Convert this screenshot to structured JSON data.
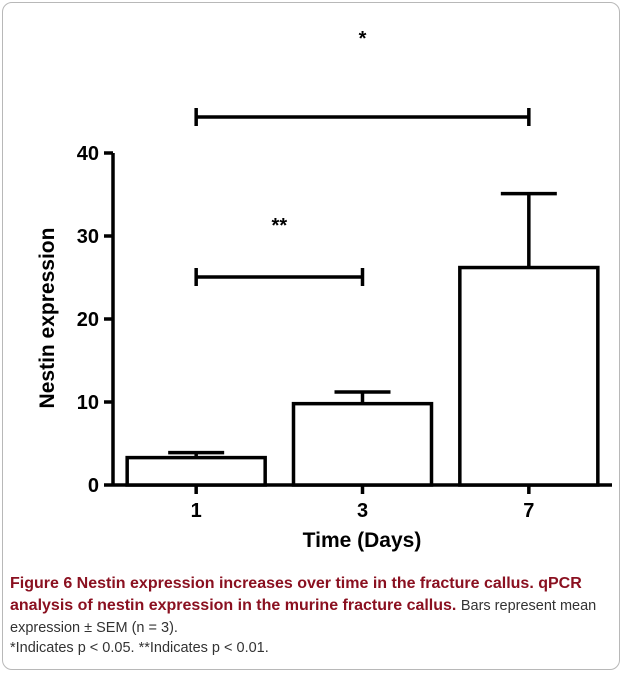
{
  "chart_data": {
    "type": "bar",
    "categories": [
      "1",
      "3",
      "7"
    ],
    "values": [
      3.3,
      9.8,
      26.2
    ],
    "errors": [
      0.6,
      1.4,
      8.9
    ],
    "xlabel": "Time (Days)",
    "ylabel": "Nestin expression",
    "ylim": [
      0,
      40
    ],
    "yticks": [
      "0",
      "10",
      "20",
      "30",
      "40"
    ],
    "significance": [
      {
        "from": "1",
        "to": "3",
        "label": "**"
      },
      {
        "from": "1",
        "to": "7",
        "label": "*"
      }
    ],
    "grid": false,
    "legend": "none"
  },
  "caption": {
    "lead": "Figure 6 Nestin expression increases over time in the fracture callus. qPCR analysis of nestin expression in the murine fracture callus.",
    "body": "Bars represent mean expression ± SEM (n = 3).",
    "notes": "*Indicates p < 0.05. **Indicates p < 0.01."
  },
  "colors": {
    "bar_fill": "#ffffff",
    "bar_stroke": "#000000",
    "caption_accent": "#8a1020"
  }
}
